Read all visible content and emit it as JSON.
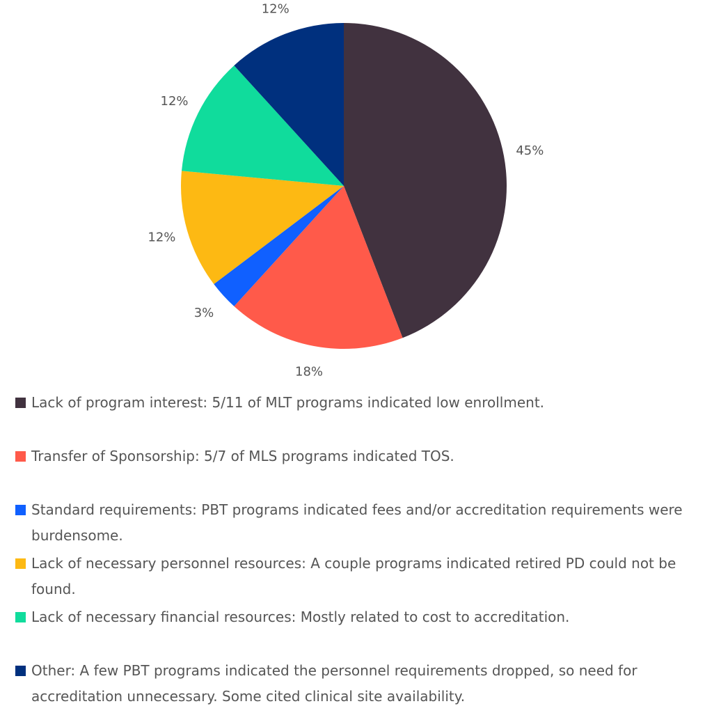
{
  "chart_data": {
    "type": "pie",
    "categories": [
      "Lack of program interest: 5/11 of MLT programs indicated low enrollment.",
      "Transfer of Sponsorship: 5/7 of MLS programs indicated TOS.",
      "Standard requirements: PBT programs indicated fees and/or accreditation requirements were burdensome.",
      "Lack of necessary personnel resources: A couple programs indicated retired PD could not be found.",
      "Lack of necessary financial resources: Mostly related to cost to accreditation.",
      "Other: A few PBT programs indicated the personnel requirements dropped, so need for accreditation unnecessary. Some cited clinical site availability."
    ],
    "values": [
      45,
      18,
      3,
      12,
      12,
      12
    ],
    "value_labels": [
      "45%",
      "18%",
      "3%",
      "12%",
      "12%",
      "12%"
    ],
    "colors": [
      "#41323f",
      "#ff5a4a",
      "#1060ff",
      "#fdb913",
      "#10dc9c",
      "#00307e"
    ]
  }
}
